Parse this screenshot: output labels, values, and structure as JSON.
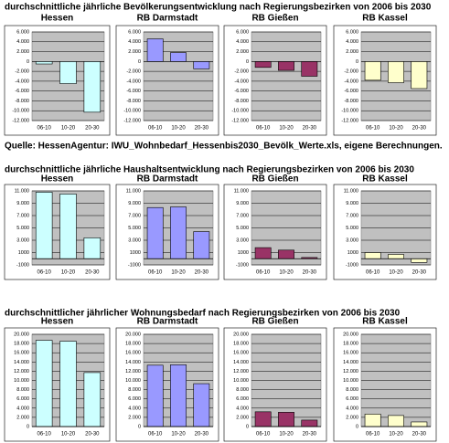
{
  "headings": [
    "durchschnittliche jährliche Bevölkerungsentwicklung nach Regierungsbezirken von 2006 bis 2030",
    "durchschnittliche jährliche Haushaltsentwicklung nach Regierungsbezirken von 2006 bis 2030",
    "durchschnittlicher jährlicher Wohnungsbedarf nach Regierungsbezirken von 2006 bis 2030"
  ],
  "source": "Quelle: HessenAgentur: IWU_Wohnbedarf_Hessenbis2030_Bevölk_Werte.xls, eigene Berechnungen.",
  "chart_data": [
    {
      "type": "bar",
      "title": "Hessen",
      "categories": [
        "06-10",
        "10-20",
        "20-30"
      ],
      "values": [
        -500,
        -4500,
        -10300
      ],
      "color": "#ccffff",
      "ylim": [
        -12000,
        6000
      ],
      "yticks": [
        {
          "value": 6000,
          "label": "6.000"
        },
        {
          "value": 4000,
          "label": "4.000"
        },
        {
          "value": 2000,
          "label": "2.000"
        },
        0,
        {
          "value": -2000,
          "label": "-2.000"
        },
        {
          "value": -4000,
          "label": "-4.000"
        },
        {
          "value": -6000,
          "label": "-6.000"
        },
        {
          "value": -8000,
          "label": "-8.000"
        },
        {
          "value": -10000,
          "label": "-10.000"
        },
        {
          "value": -12000,
          "label": "-12.000"
        }
      ]
    },
    {
      "type": "bar",
      "title": "RB Darmstadt",
      "categories": [
        "06-10",
        "10-20",
        "20-30"
      ],
      "values": [
        4600,
        1800,
        -1500
      ],
      "color": "#9999ff",
      "ylim": [
        -12000,
        6000
      ],
      "yticks": [
        {
          "value": 6000,
          "label": "6.000"
        },
        {
          "value": 4000,
          "label": "4.000"
        },
        {
          "value": 2000,
          "label": "2.000"
        },
        0,
        {
          "value": -2000,
          "label": "-2.000"
        },
        {
          "value": -4000,
          "label": "-4.000"
        },
        {
          "value": -6000,
          "label": "-6.000"
        },
        {
          "value": -8000,
          "label": "-8.000"
        },
        {
          "value": -10000,
          "label": "-10.000"
        },
        {
          "value": -12000,
          "label": "-12.000"
        }
      ]
    },
    {
      "type": "bar",
      "title": "RB Gießen",
      "categories": [
        "06-10",
        "10-20",
        "20-30"
      ],
      "values": [
        -1200,
        -1800,
        -3000
      ],
      "color": "#993366",
      "ylim": [
        -12000,
        6000
      ],
      "yticks": [
        {
          "value": 6000,
          "label": "6.000"
        },
        {
          "value": 4000,
          "label": "4.000"
        },
        {
          "value": 2000,
          "label": "2.000"
        },
        0,
        {
          "value": -2000,
          "label": "-2.000"
        },
        {
          "value": -4000,
          "label": "-4.000"
        },
        {
          "value": -6000,
          "label": "-6.000"
        },
        {
          "value": -8000,
          "label": "-8.000"
        },
        {
          "value": -10000,
          "label": "-10.000"
        },
        {
          "value": -12000,
          "label": "-12.000"
        }
      ]
    },
    {
      "type": "bar",
      "title": "RB Kassel",
      "categories": [
        "06-10",
        "10-20",
        "20-30"
      ],
      "values": [
        -3800,
        -4300,
        -5500
      ],
      "color": "#ffffcc",
      "ylim": [
        -12000,
        6000
      ],
      "yticks": [
        {
          "value": 6000,
          "label": "6.000"
        },
        {
          "value": 4000,
          "label": "4.000"
        },
        {
          "value": 2000,
          "label": "2.000"
        },
        0,
        {
          "value": -2000,
          "label": "-2.000"
        },
        {
          "value": -4000,
          "label": "-4.000"
        },
        {
          "value": -6000,
          "label": "-6.000"
        },
        {
          "value": -8000,
          "label": "-8.000"
        },
        {
          "value": -10000,
          "label": "-10.000"
        },
        {
          "value": -12000,
          "label": "-12.000"
        }
      ]
    },
    {
      "type": "bar",
      "title": "Hessen",
      "categories": [
        "06-10",
        "10-20",
        "20-30"
      ],
      "values": [
        10800,
        10500,
        3400
      ],
      "color": "#ccffff",
      "ylim": [
        -1000,
        11000
      ],
      "yticks": [
        {
          "value": 11000,
          "label": "11.000"
        },
        {
          "value": 9000,
          "label": "9.000"
        },
        {
          "value": 7000,
          "label": "7.000"
        },
        {
          "value": 5000,
          "label": "5.000"
        },
        {
          "value": 3000,
          "label": "3.000"
        },
        1000,
        -1000
      ]
    },
    {
      "type": "bar",
      "title": "RB Darmstadt",
      "categories": [
        "06-10",
        "10-20",
        "20-30"
      ],
      "values": [
        8300,
        8400,
        4400
      ],
      "color": "#9999ff",
      "ylim": [
        -1000,
        11000
      ],
      "yticks": [
        {
          "value": 11000,
          "label": "11.000"
        },
        {
          "value": 9000,
          "label": "9.000"
        },
        {
          "value": 7000,
          "label": "7.000"
        },
        {
          "value": 5000,
          "label": "5.000"
        },
        {
          "value": 3000,
          "label": "3.000"
        },
        1000,
        -1000
      ]
    },
    {
      "type": "bar",
      "title": "RB Gießen",
      "categories": [
        "06-10",
        "10-20",
        "20-30"
      ],
      "values": [
        1800,
        1400,
        200
      ],
      "color": "#993366",
      "ylim": [
        -1000,
        11000
      ],
      "yticks": [
        {
          "value": 11000,
          "label": "11.000"
        },
        {
          "value": 9000,
          "label": "9.000"
        },
        {
          "value": 7000,
          "label": "7.000"
        },
        {
          "value": 5000,
          "label": "5.000"
        },
        {
          "value": 3000,
          "label": "3.000"
        },
        1000,
        -1000
      ]
    },
    {
      "type": "bar",
      "title": "RB Kassel",
      "categories": [
        "06-10",
        "10-20",
        "20-30"
      ],
      "values": [
        1000,
        700,
        -600
      ],
      "color": "#ffffcc",
      "ylim": [
        -1000,
        11000
      ],
      "yticks": [
        {
          "value": 11000,
          "label": "11.000"
        },
        {
          "value": 9000,
          "label": "9.000"
        },
        {
          "value": 7000,
          "label": "7.000"
        },
        {
          "value": 5000,
          "label": "5.000"
        },
        {
          "value": 3000,
          "label": "3.000"
        },
        1000,
        -1000
      ]
    },
    {
      "type": "bar",
      "title": "Hessen",
      "categories": [
        "06-10",
        "10-20",
        "20-30"
      ],
      "values": [
        18700,
        18500,
        11700
      ],
      "color": "#ccffff",
      "ylim": [
        0,
        20000
      ],
      "yticks": [
        {
          "value": 20000,
          "label": "20.000"
        },
        {
          "value": 18000,
          "label": "18.000"
        },
        {
          "value": 16000,
          "label": "16.000"
        },
        {
          "value": 14000,
          "label": "14.000"
        },
        {
          "value": 12000,
          "label": "12.000"
        },
        {
          "value": 10000,
          "label": "10.000"
        },
        {
          "value": 8000,
          "label": "8.000"
        },
        {
          "value": 6000,
          "label": "6.000"
        },
        {
          "value": 4000,
          "label": "4.000"
        },
        {
          "value": 2000,
          "label": "2.000"
        },
        0
      ]
    },
    {
      "type": "bar",
      "title": "RB Darmstadt",
      "categories": [
        "06-10",
        "10-20",
        "20-30"
      ],
      "values": [
        13300,
        13400,
        9300
      ],
      "color": "#9999ff",
      "ylim": [
        0,
        20000
      ],
      "yticks": [
        {
          "value": 20000,
          "label": "20.000"
        },
        {
          "value": 18000,
          "label": "18.000"
        },
        {
          "value": 16000,
          "label": "16.000"
        },
        {
          "value": 14000,
          "label": "14.000"
        },
        {
          "value": 12000,
          "label": "12.000"
        },
        {
          "value": 10000,
          "label": "10.000"
        },
        {
          "value": 8000,
          "label": "8.000"
        },
        {
          "value": 6000,
          "label": "6.000"
        },
        {
          "value": 4000,
          "label": "4.000"
        },
        {
          "value": 2000,
          "label": "2.000"
        },
        0
      ]
    },
    {
      "type": "bar",
      "title": "RB Gießen",
      "categories": [
        "06-10",
        "10-20",
        "20-30"
      ],
      "values": [
        3200,
        3100,
        1400
      ],
      "color": "#993366",
      "ylim": [
        0,
        20000
      ],
      "yticks": [
        {
          "value": 20000,
          "label": "20.000"
        },
        {
          "value": 18000,
          "label": "18.000"
        },
        {
          "value": 16000,
          "label": "16.000"
        },
        {
          "value": 14000,
          "label": "14.000"
        },
        {
          "value": 12000,
          "label": "12.000"
        },
        {
          "value": 10000,
          "label": "10.000"
        },
        {
          "value": 8000,
          "label": "8.000"
        },
        {
          "value": 6000,
          "label": "6.000"
        },
        {
          "value": 4000,
          "label": "4.000"
        },
        {
          "value": 2000,
          "label": "2.000"
        },
        0
      ]
    },
    {
      "type": "bar",
      "title": "RB Kassel",
      "categories": [
        "06-10",
        "10-20",
        "20-30"
      ],
      "values": [
        2700,
        2400,
        1000
      ],
      "color": "#ffffcc",
      "ylim": [
        0,
        20000
      ],
      "yticks": [
        {
          "value": 20000,
          "label": "20.000"
        },
        {
          "value": 18000,
          "label": "18.000"
        },
        {
          "value": 16000,
          "label": "16.000"
        },
        {
          "value": 14000,
          "label": "14.000"
        },
        {
          "value": 12000,
          "label": "12.000"
        },
        {
          "value": 10000,
          "label": "10.000"
        },
        {
          "value": 8000,
          "label": "8.000"
        },
        {
          "value": 6000,
          "label": "6.000"
        },
        {
          "value": 4000,
          "label": "4.000"
        },
        {
          "value": 2000,
          "label": "2.000"
        },
        0
      ]
    }
  ]
}
